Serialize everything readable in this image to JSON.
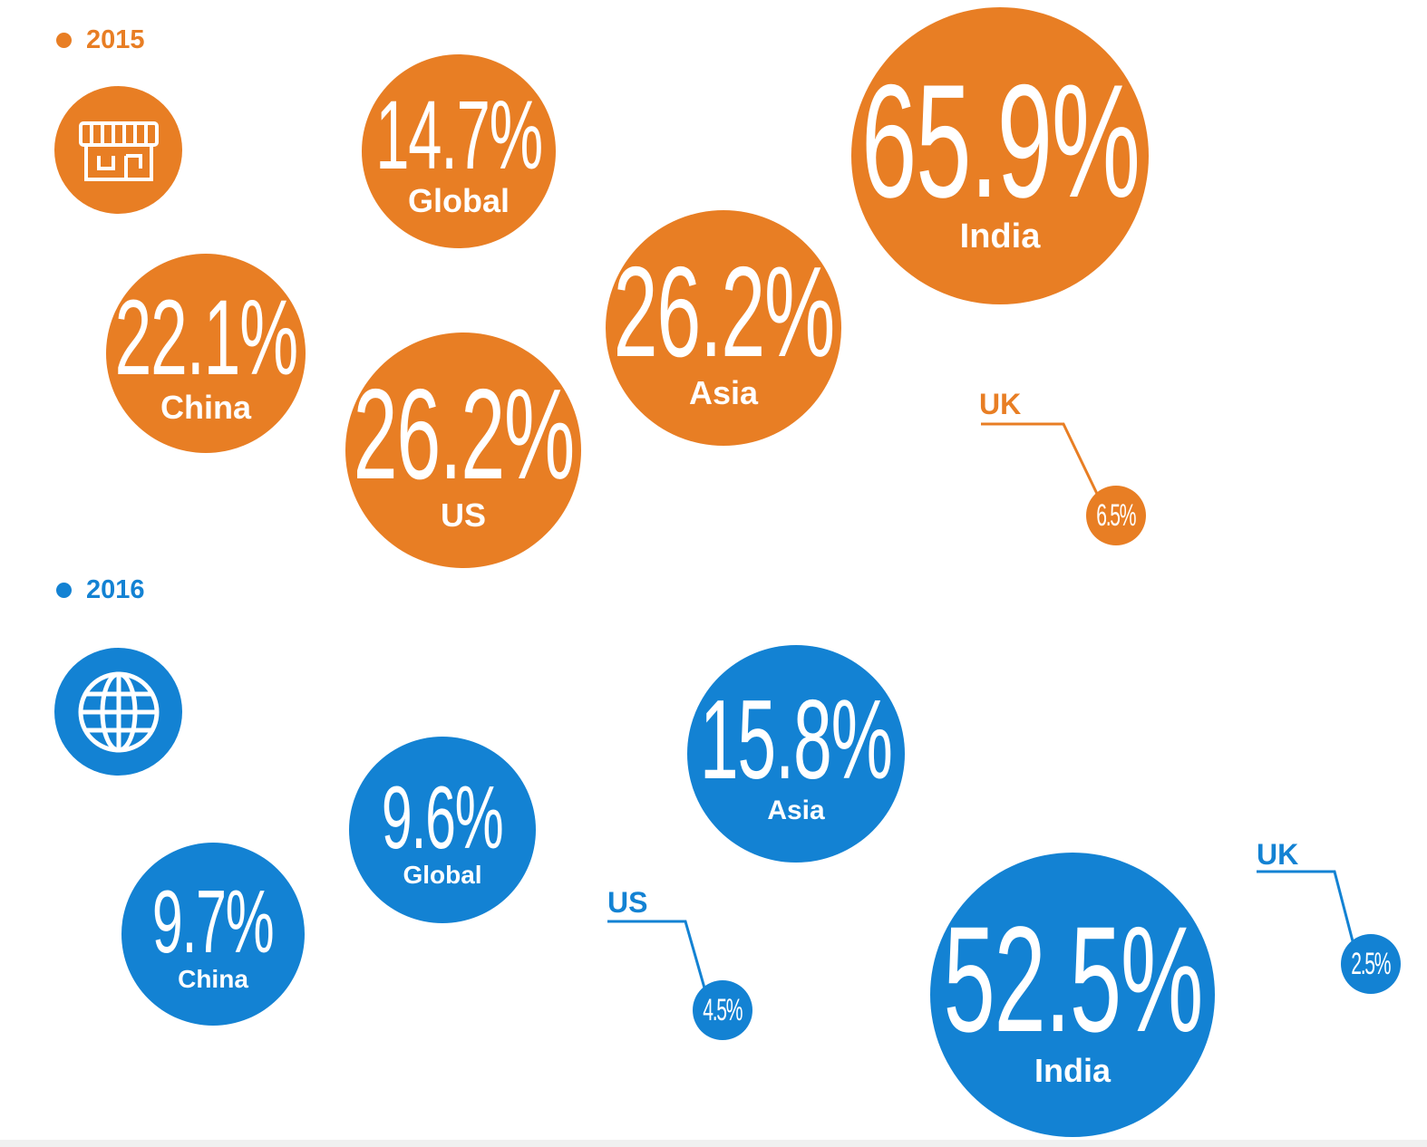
{
  "colors": {
    "y2015": "#E87E24",
    "y2016": "#1382D3"
  },
  "icons": {
    "y2015": "storefront-icon",
    "y2016": "globe-icon"
  },
  "legend": [
    {
      "year": "2015"
    },
    {
      "year": "2016"
    }
  ],
  "chart_data": {
    "type": "bubble",
    "units": "%",
    "series": [
      {
        "name": "2015",
        "points": [
          {
            "label": "Global",
            "value": 14.7,
            "text": "14.7%"
          },
          {
            "label": "India",
            "value": 65.9,
            "text": "65.9%"
          },
          {
            "label": "China",
            "value": 22.1,
            "text": "22.1%"
          },
          {
            "label": "Asia",
            "value": 26.2,
            "text": "26.2%"
          },
          {
            "label": "US",
            "value": 26.2,
            "text": "26.2%"
          },
          {
            "label": "UK",
            "value": 6.5,
            "text": "6.5%"
          }
        ]
      },
      {
        "name": "2016",
        "points": [
          {
            "label": "Asia",
            "value": 15.8,
            "text": "15.8%"
          },
          {
            "label": "Global",
            "value": 9.6,
            "text": "9.6%"
          },
          {
            "label": "China",
            "value": 9.7,
            "text": "9.7%"
          },
          {
            "label": "US",
            "value": 4.5,
            "text": "4.5%"
          },
          {
            "label": "India",
            "value": 52.5,
            "text": "52.5%"
          },
          {
            "label": "UK",
            "value": 2.5,
            "text": "2.5%"
          }
        ]
      }
    ]
  }
}
